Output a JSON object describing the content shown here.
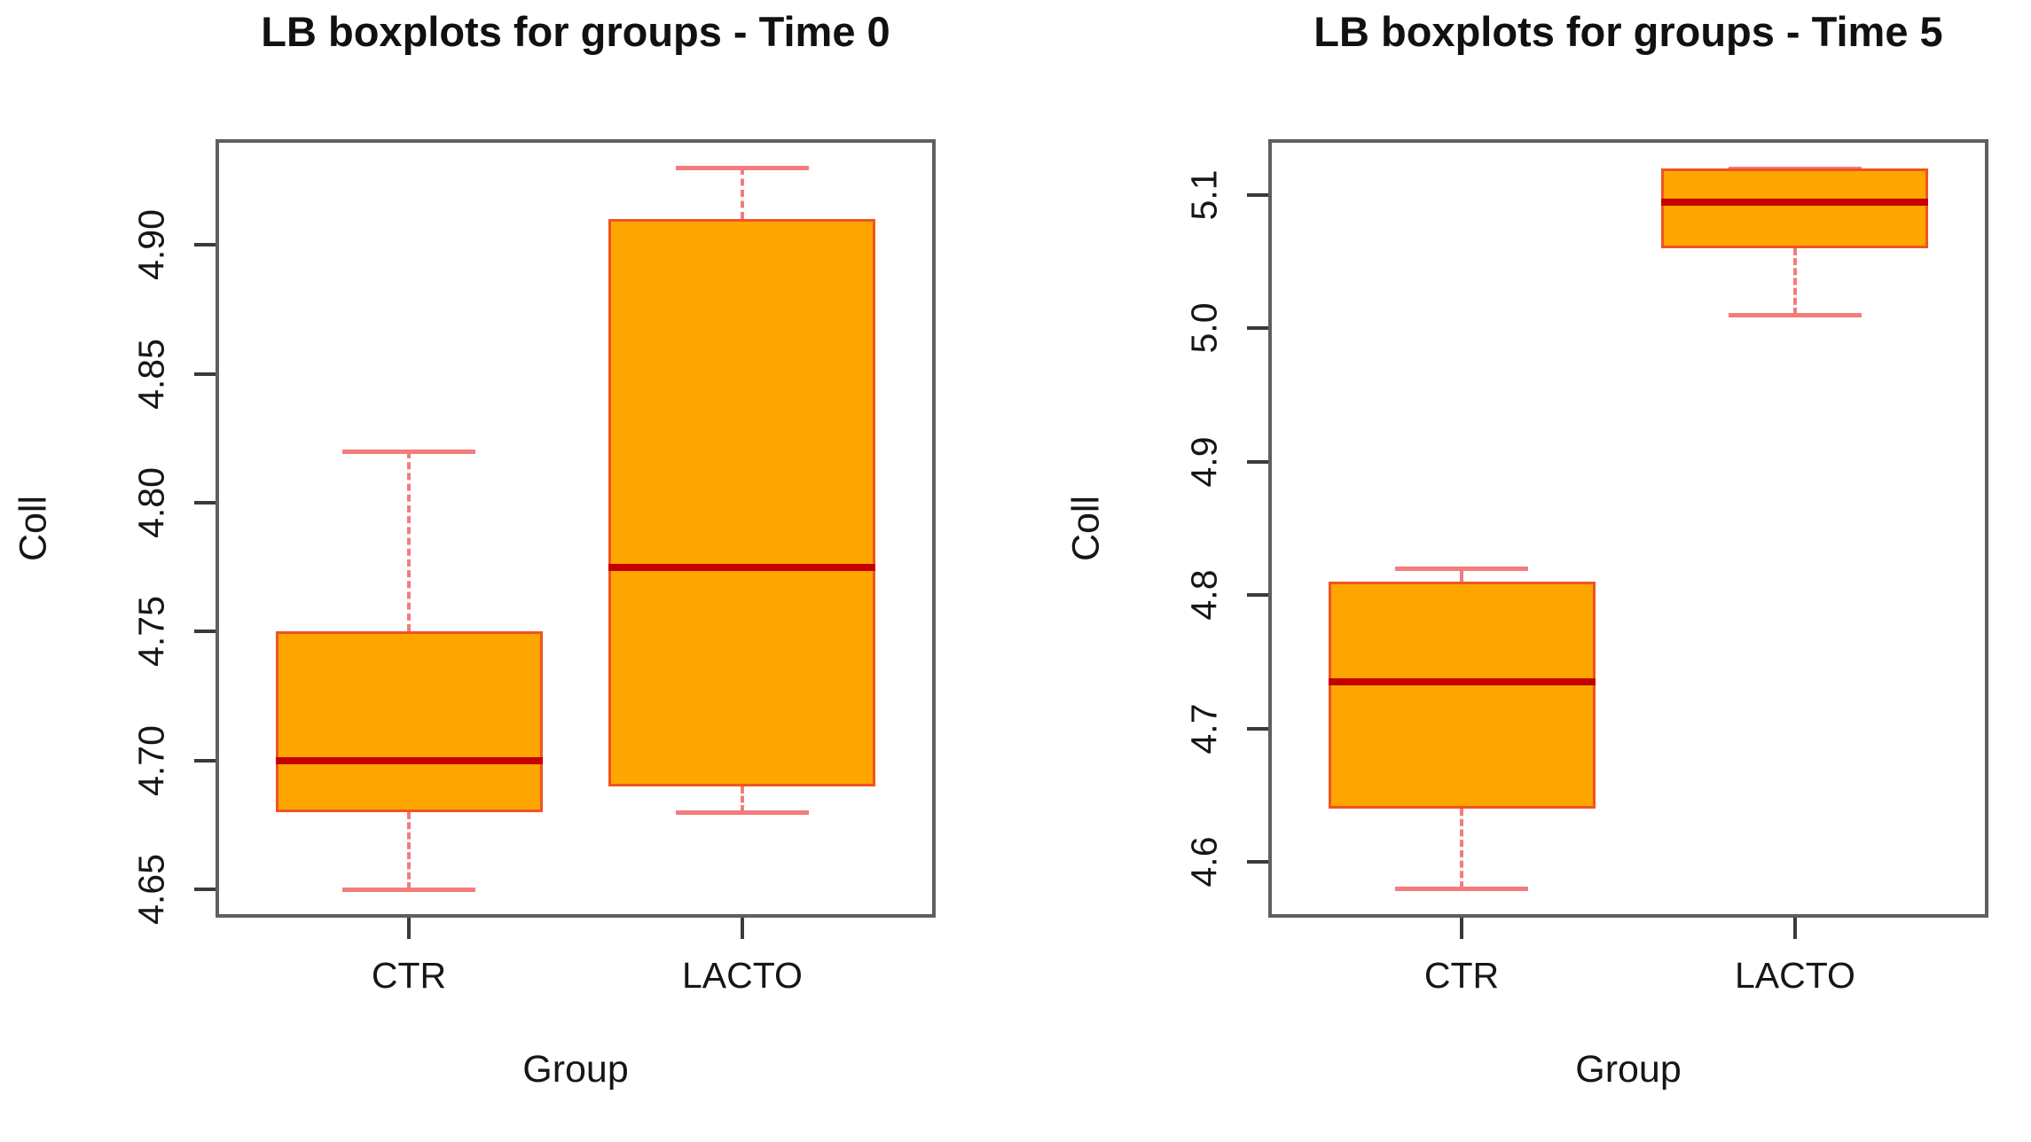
{
  "page": {
    "background": "#ffffff"
  },
  "colors": {
    "box_fill": "#ffa500",
    "box_border": "#f05423",
    "median": "#c40000",
    "whisker": "#f47c7c",
    "frame": "#5f5f5f",
    "tick": "#3a3a3a",
    "text": "#111111"
  },
  "chart_data": [
    {
      "type": "boxplot",
      "title": "LB boxplots for groups - Time 0",
      "xlabel": "Group",
      "ylabel": "Coll",
      "categories": [
        "CTR",
        "LACTO"
      ],
      "y_axis": {
        "min": 4.639,
        "max": 4.941,
        "grid": false,
        "ticks": [
          {
            "value": 4.65,
            "label": "4.65"
          },
          {
            "value": 4.7,
            "label": "4.70"
          },
          {
            "value": 4.75,
            "label": "4.75"
          },
          {
            "value": 4.8,
            "label": "4.80"
          },
          {
            "value": 4.85,
            "label": "4.85"
          },
          {
            "value": 4.9,
            "label": "4.90"
          }
        ]
      },
      "series": [
        {
          "category": "CTR",
          "whisker_low": 4.65,
          "q1": 4.68,
          "median": 4.7,
          "q3": 4.75,
          "whisker_high": 4.82
        },
        {
          "category": "LACTO",
          "whisker_low": 4.68,
          "q1": 4.69,
          "median": 4.775,
          "q3": 4.91,
          "whisker_high": 4.93
        }
      ]
    },
    {
      "type": "boxplot",
      "title": "LB boxplots for groups - Time 5",
      "xlabel": "Group",
      "ylabel": "Coll",
      "categories": [
        "CTR",
        "LACTO"
      ],
      "y_axis": {
        "min": 4.558,
        "max": 5.142,
        "grid": false,
        "ticks": [
          {
            "value": 4.6,
            "label": "4.6"
          },
          {
            "value": 4.7,
            "label": "4.7"
          },
          {
            "value": 4.8,
            "label": "4.8"
          },
          {
            "value": 4.9,
            "label": "4.9"
          },
          {
            "value": 5.0,
            "label": "5.0"
          },
          {
            "value": 5.1,
            "label": "5.1"
          }
        ]
      },
      "series": [
        {
          "category": "CTR",
          "whisker_low": 4.58,
          "q1": 4.64,
          "median": 4.735,
          "q3": 4.81,
          "whisker_high": 4.82
        },
        {
          "category": "LACTO",
          "whisker_low": 5.01,
          "q1": 5.06,
          "median": 5.095,
          "q3": 5.12,
          "whisker_high": 5.12
        }
      ]
    }
  ]
}
